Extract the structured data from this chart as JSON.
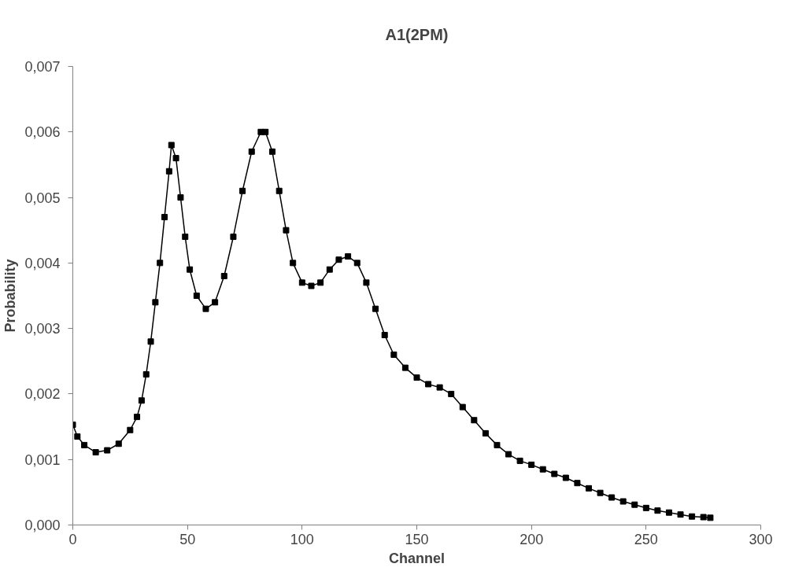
{
  "chart_data": {
    "type": "line",
    "title": "A1(2PM)",
    "xlabel": "Channel",
    "ylabel": "Probability",
    "x": [
      0,
      2,
      5,
      10,
      15,
      20,
      25,
      28,
      30,
      32,
      34,
      36,
      38,
      40,
      42,
      43,
      45,
      47,
      49,
      51,
      54,
      58,
      62,
      66,
      70,
      74,
      78,
      82,
      84,
      87,
      90,
      93,
      96,
      100,
      104,
      108,
      112,
      116,
      120,
      124,
      128,
      132,
      136,
      140,
      145,
      150,
      155,
      160,
      165,
      170,
      175,
      180,
      185,
      190,
      195,
      200,
      205,
      210,
      215,
      220,
      225,
      230,
      235,
      240,
      245,
      250,
      255,
      260,
      265,
      270,
      275,
      278
    ],
    "series": [
      {
        "color": "#000000",
        "values": [
          0.00153,
          0.00135,
          0.00122,
          0.00111,
          0.00114,
          0.00124,
          0.00145,
          0.00165,
          0.0019,
          0.0023,
          0.0028,
          0.0034,
          0.004,
          0.0047,
          0.0054,
          0.0058,
          0.0056,
          0.005,
          0.0044,
          0.0039,
          0.0035,
          0.0033,
          0.0034,
          0.0038,
          0.0044,
          0.0051,
          0.0057,
          0.006,
          0.006,
          0.0057,
          0.0051,
          0.0045,
          0.004,
          0.0037,
          0.00365,
          0.0037,
          0.0039,
          0.00405,
          0.0041,
          0.004,
          0.0037,
          0.0033,
          0.0029,
          0.0026,
          0.0024,
          0.00225,
          0.00215,
          0.0021,
          0.002,
          0.0018,
          0.0016,
          0.0014,
          0.00122,
          0.00108,
          0.00098,
          0.00092,
          0.00085,
          0.00078,
          0.00072,
          0.00064,
          0.00056,
          0.00049,
          0.00042,
          0.00036,
          0.00031,
          0.00026,
          0.00022,
          0.00019,
          0.00016,
          0.00013,
          0.00012,
          0.00011
        ]
      }
    ],
    "xlim": [
      0,
      300
    ],
    "xticks": [
      0,
      50,
      100,
      150,
      200,
      250,
      300
    ],
    "ylim": [
      0,
      0.007
    ],
    "yticks": [
      {
        "value": 0,
        "label": "0,000"
      },
      {
        "value": 0.001,
        "label": "0,001"
      },
      {
        "value": 0.002,
        "label": "0,002"
      },
      {
        "value": 0.003,
        "label": "0,003"
      },
      {
        "value": 0.004,
        "label": "0,004"
      },
      {
        "value": 0.005,
        "label": "0,005"
      },
      {
        "value": 0.006,
        "label": "0,006"
      },
      {
        "value": 0.007,
        "label": "0,007"
      }
    ],
    "grid": false,
    "marker": "square",
    "line_style": "solid"
  }
}
